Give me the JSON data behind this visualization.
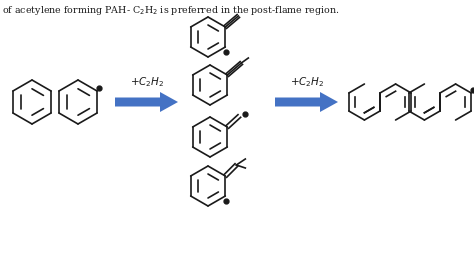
{
  "bg_color": "#ffffff",
  "arrow_color": "#4472C4",
  "line_color": "#1a1a1a",
  "text_color": "#1a1a1a",
  "fig_width": 4.74,
  "fig_height": 2.65,
  "dpi": 100,
  "title_text": "of acetylene forming PAH- C",
  "title_sub": "2",
  "title_sub2": "H",
  "title_sub3": "2",
  "title_suffix": " is preferred in the post-flame region."
}
